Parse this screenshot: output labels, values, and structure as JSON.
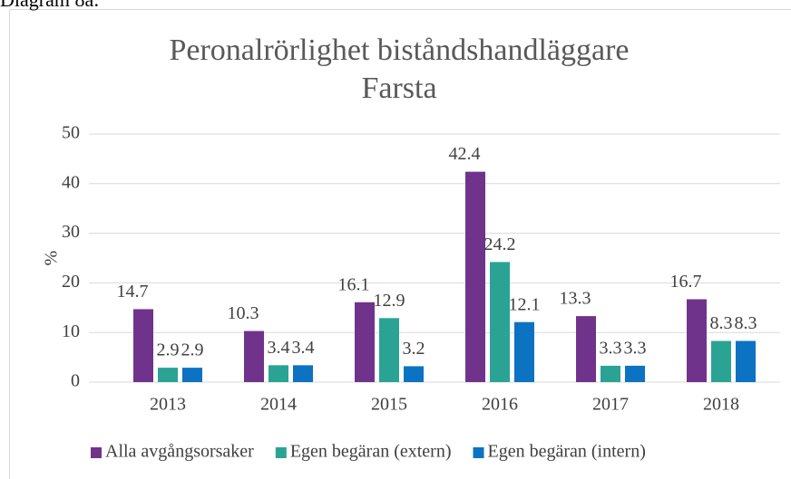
{
  "caption": "Diagram 8a:",
  "chart_data": {
    "type": "bar",
    "title": [
      "Peronalrörlighet biståndshandläggare",
      "Farsta"
    ],
    "y_label": "%",
    "categories": [
      "2013",
      "2014",
      "2015",
      "2016",
      "2017",
      "2018"
    ],
    "series": [
      {
        "name": "Alla avgångsorsaker",
        "color": "#70338c",
        "values": [
          14.7,
          10.3,
          16.1,
          42.4,
          13.3,
          16.7
        ]
      },
      {
        "name": "Egen begäran (extern)",
        "color": "#2aa394",
        "values": [
          2.9,
          3.4,
          12.9,
          24.2,
          3.3,
          8.3
        ]
      },
      {
        "name": "Egen begäran (intern)",
        "color": "#0b73c2",
        "values": [
          2.9,
          3.4,
          3.2,
          12.1,
          3.3,
          8.3
        ]
      }
    ],
    "ylim": [
      0,
      50
    ],
    "yticks": [
      0,
      10,
      20,
      30,
      40,
      50
    ],
    "grid": true,
    "legend": "bottom"
  }
}
